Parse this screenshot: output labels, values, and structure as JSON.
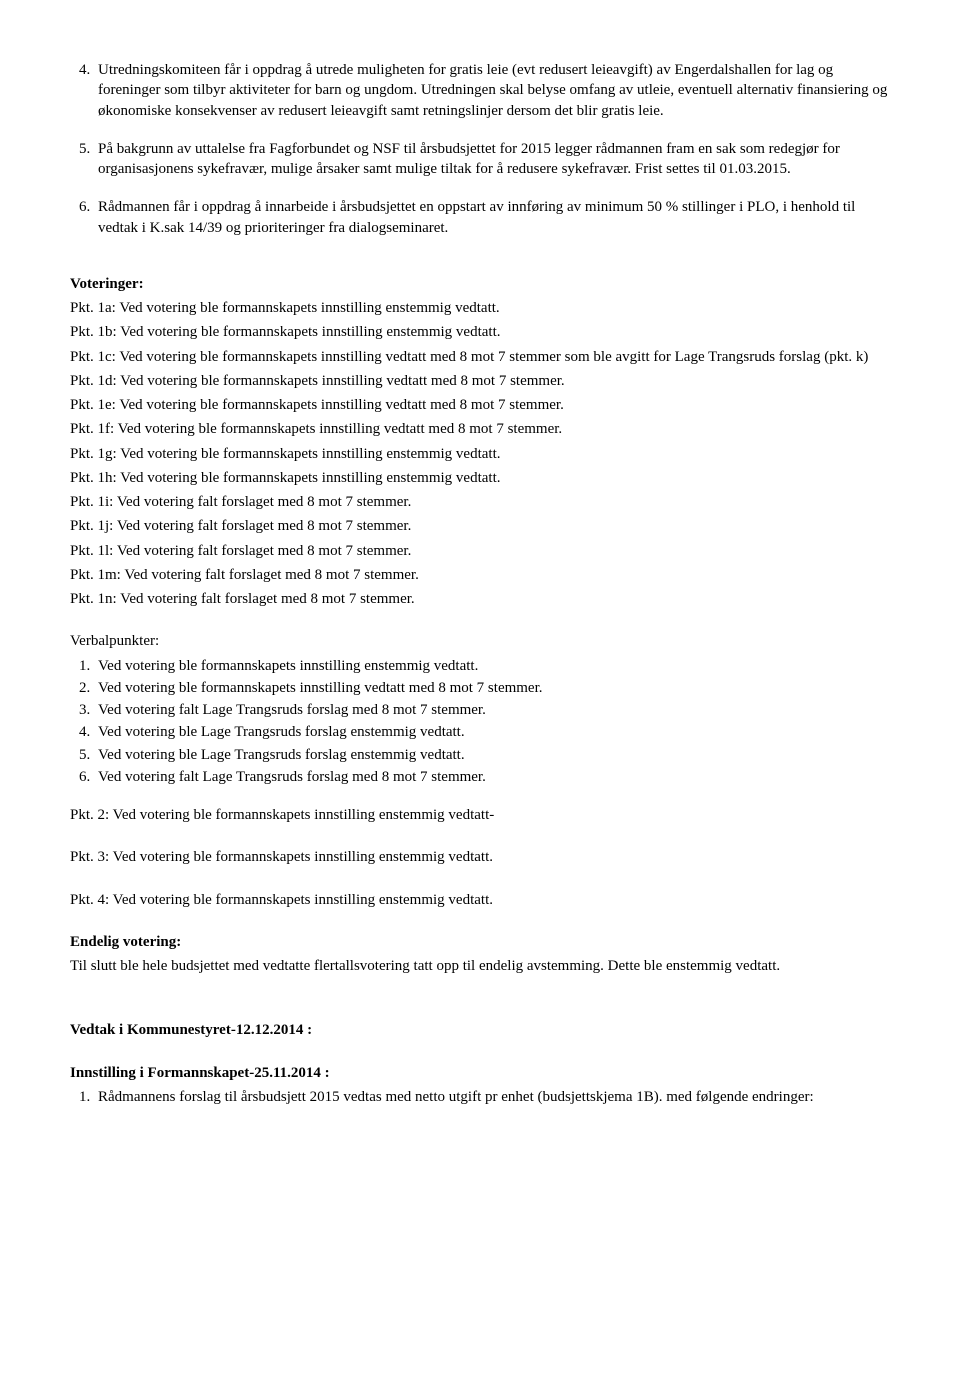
{
  "topList": {
    "item4": "Utredningskomiteen får i oppdrag å utrede muligheten for gratis leie (evt redusert leieavgift) av Engerdalshallen for lag og foreninger som tilbyr aktiviteter for barn og ungdom. Utredningen skal belyse omfang av utleie, eventuell alternativ finansiering og økonomiske konsekvenser av redusert leieavgift samt retningslinjer dersom det blir gratis leie.",
    "item5": "På bakgrunn av uttalelse fra Fagforbundet og NSF til årsbudsjettet for 2015 legger rådmannen fram en sak som redegjør for organisasjonens sykefravær, mulige årsaker samt mulige tiltak for å redusere sykefravær. Frist settes til 01.03.2015.",
    "item6": "Rådmannen får i oppdrag å innarbeide i årsbudsjettet en oppstart av innføring av minimum 50 % stillinger i PLO, i henhold til vedtak i K.sak 14/39 og prioriteringer fra dialogseminaret."
  },
  "voteringer": {
    "heading": "Voteringer:",
    "pkt1a": "Pkt. 1a: Ved votering ble formannskapets innstilling enstemmig vedtatt.",
    "pkt1b": "Pkt. 1b: Ved votering ble formannskapets innstilling enstemmig vedtatt.",
    "pkt1c": "Pkt. 1c: Ved votering ble formannskapets innstilling vedtatt med 8 mot 7 stemmer som ble avgitt for Lage Trangsruds forslag (pkt. k)",
    "pkt1d": "Pkt. 1d: Ved votering ble formannskapets innstilling vedtatt med 8 mot 7 stemmer.",
    "pkt1e": "Pkt. 1e: Ved votering ble formannskapets innstilling vedtatt med 8 mot 7 stemmer.",
    "pkt1f": "Pkt. 1f: Ved votering ble formannskapets innstilling vedtatt med 8 mot 7 stemmer.",
    "pkt1g": "Pkt. 1g: Ved votering ble formannskapets innstilling enstemmig vedtatt.",
    "pkt1h": "Pkt. 1h: Ved votering ble formannskapets innstilling enstemmig vedtatt.",
    "pkt1i": "Pkt. 1i:  Ved votering falt forslaget med 8 mot 7 stemmer.",
    "pkt1j": "Pkt. 1j: Ved votering falt forslaget med 8 mot 7 stemmer.",
    "pkt1l": "Pkt. 1l: Ved votering falt forslaget med 8 mot 7 stemmer.",
    "pkt1m": "Pkt. 1m: Ved votering falt forslaget med 8 mot 7 stemmer.",
    "pkt1n": "Pkt. 1n: Ved votering falt forslaget med 8 mot 7 stemmer."
  },
  "verbal": {
    "heading": "Verbalpunkter:",
    "items": [
      "Ved votering ble formannskapets innstilling enstemmig vedtatt.",
      "Ved votering ble formannskapets innstilling vedtatt med 8 mot 7 stemmer.",
      "Ved votering falt Lage Trangsruds forslag med 8 mot 7 stemmer.",
      "Ved votering ble Lage Trangsruds forslag enstemmig vedtatt.",
      "Ved votering ble Lage Trangsruds forslag enstemmig vedtatt.",
      "Ved votering falt Lage Trangsruds forslag med 8 mot 7 stemmer."
    ]
  },
  "pkt2": "Pkt. 2:  Ved votering ble formannskapets innstilling enstemmig vedtatt-",
  "pkt3": "Pkt. 3:  Ved votering ble formannskapets innstilling enstemmig vedtatt.",
  "pkt4": "Pkt. 4:  Ved votering ble formannskapets innstilling enstemmig vedtatt.",
  "endelig": {
    "heading": "Endelig votering:",
    "body": "Til slutt ble hele budsjettet med vedtatte flertallsvotering tatt opp til endelig avstemming. Dette ble enstemmig vedtatt."
  },
  "vedtak": {
    "heading": "Vedtak i Kommunestyret-12.12.2014 :",
    "sub": "Innstilling i Formannskapet-25.11.2014 :",
    "item1": "Rådmannens forslag til årsbudsjett 2015 vedtas med netto utgift pr enhet (budsjettskjema 1B). med følgende endringer:"
  }
}
